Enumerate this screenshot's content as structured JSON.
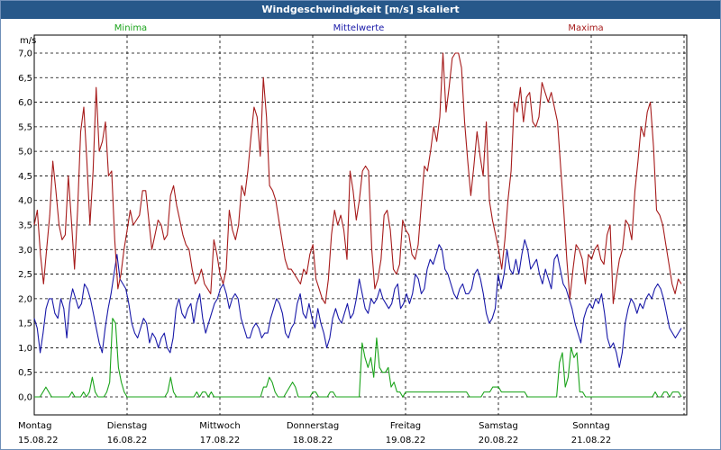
{
  "window": {
    "title": "Windgeschwindigkeit [m/s] skaliert"
  },
  "chart_data": {
    "type": "line",
    "title": "Windgeschwindigkeit [m/s] skaliert",
    "ylabel": "m/s",
    "ylim": [
      0,
      7.0
    ],
    "yticks": [
      "0,0",
      "0,5",
      "1,0",
      "1,5",
      "2,0",
      "2,5",
      "3,0",
      "3,5",
      "4,0",
      "4,5",
      "5,0",
      "5,5",
      "6,0",
      "6,5",
      "7,0"
    ],
    "day_labels": [
      {
        "weekday": "Montag",
        "date": "15.08.22"
      },
      {
        "weekday": "Dienstag",
        "date": "16.08.22"
      },
      {
        "weekday": "Mittwoch",
        "date": "17.08.22"
      },
      {
        "weekday": "Donnerstag",
        "date": "18.08.22"
      },
      {
        "weekday": "Freitag",
        "date": "19.08.22"
      },
      {
        "weekday": "Samstag",
        "date": "20.08.22"
      },
      {
        "weekday": "Sonntag",
        "date": "21.08.22"
      }
    ],
    "grid": true,
    "series": [
      {
        "name": "Minima",
        "color": "#1aa31a",
        "values": [
          0,
          0,
          0,
          0.1,
          0.2,
          0.1,
          0,
          0,
          0,
          0,
          0,
          0,
          0,
          0.1,
          0,
          0,
          0,
          0.1,
          0,
          0.1,
          0.4,
          0.1,
          0,
          0,
          0,
          0.1,
          0.3,
          1.6,
          1.5,
          0.6,
          0.3,
          0.1,
          0,
          0,
          0,
          0,
          0,
          0,
          0,
          0,
          0,
          0,
          0,
          0,
          0,
          0,
          0.1,
          0.4,
          0.1,
          0,
          0,
          0,
          0,
          0,
          0,
          0,
          0.1,
          0,
          0.1,
          0.1,
          0,
          0.1,
          0,
          0,
          0,
          0,
          0,
          0,
          0,
          0,
          0,
          0,
          0,
          0,
          0,
          0,
          0,
          0,
          0,
          0.2,
          0.2,
          0.4,
          0.3,
          0.1,
          0,
          0,
          0,
          0.1,
          0.2,
          0.3,
          0.2,
          0,
          0,
          0,
          0,
          0,
          0.1,
          0.1,
          0,
          0,
          0,
          0,
          0.1,
          0.1,
          0,
          0,
          0,
          0,
          0,
          0,
          0,
          0,
          0,
          1.1,
          0.8,
          0.6,
          0.8,
          0.4,
          1.2,
          0.6,
          0.5,
          0.5,
          0.6,
          0.2,
          0.3,
          0.1,
          0.1,
          0,
          0.1,
          0.1,
          0.1,
          0.1,
          0.1,
          0.1,
          0.1,
          0.1,
          0.1,
          0.1,
          0.1,
          0.1,
          0.1,
          0.1,
          0.1,
          0.1,
          0.1,
          0.1,
          0.1,
          0.1,
          0.1,
          0.1,
          0,
          0,
          0,
          0,
          0,
          0.1,
          0.1,
          0.1,
          0.2,
          0.2,
          0.2,
          0.1,
          0.1,
          0.1,
          0.1,
          0.1,
          0.1,
          0.1,
          0.1,
          0.1,
          0,
          0,
          0,
          0,
          0,
          0,
          0,
          0,
          0,
          0,
          0,
          0.7,
          0.9,
          0.2,
          0.4,
          1.0,
          0.8,
          0.9,
          0.1,
          0.1,
          0,
          0,
          0,
          0,
          0,
          0,
          0,
          0,
          0,
          0,
          0,
          0,
          0,
          0,
          0,
          0,
          0,
          0,
          0,
          0,
          0,
          0,
          0,
          0,
          0.1,
          0,
          0,
          0.1,
          0.1,
          0,
          0.1,
          0.1,
          0.1,
          0
        ]
      },
      {
        "name": "Mittelwerte",
        "color": "#1818a8",
        "values": [
          1.6,
          1.4,
          0.9,
          1.3,
          1.8,
          2.0,
          2.0,
          1.7,
          1.6,
          2.0,
          1.8,
          1.2,
          1.9,
          2.2,
          2.0,
          1.8,
          1.9,
          2.3,
          2.2,
          2.0,
          1.7,
          1.4,
          1.1,
          0.9,
          1.4,
          1.8,
          2.1,
          2.5,
          2.9,
          2.4,
          2.3,
          2.2,
          1.9,
          1.5,
          1.3,
          1.2,
          1.4,
          1.6,
          1.5,
          1.1,
          1.3,
          1.2,
          1.0,
          1.2,
          1.3,
          1.0,
          0.9,
          1.2,
          1.8,
          2.0,
          1.7,
          1.6,
          1.8,
          1.9,
          1.5,
          1.9,
          2.1,
          1.6,
          1.3,
          1.5,
          1.7,
          1.9,
          2.0,
          2.2,
          2.3,
          2.1,
          1.8,
          2.0,
          2.1,
          2.0,
          1.6,
          1.4,
          1.2,
          1.2,
          1.4,
          1.5,
          1.4,
          1.2,
          1.3,
          1.3,
          1.6,
          1.8,
          2.0,
          1.9,
          1.7,
          1.3,
          1.2,
          1.4,
          1.5,
          1.9,
          2.1,
          1.7,
          1.6,
          1.9,
          1.6,
          1.4,
          1.8,
          1.5,
          1.3,
          1.0,
          1.2,
          1.6,
          1.8,
          1.6,
          1.5,
          1.7,
          1.9,
          1.6,
          1.7,
          2.0,
          2.4,
          2.1,
          1.8,
          1.7,
          2.0,
          1.9,
          2.0,
          2.2,
          2.0,
          1.9,
          1.8,
          1.9,
          2.2,
          2.3,
          1.8,
          1.9,
          2.1,
          1.9,
          2.1,
          2.5,
          2.4,
          2.1,
          2.2,
          2.6,
          2.8,
          2.7,
          2.9,
          3.1,
          3.0,
          2.6,
          2.5,
          2.3,
          2.1,
          2.0,
          2.2,
          2.3,
          2.1,
          2.1,
          2.2,
          2.5,
          2.6,
          2.4,
          2.1,
          1.7,
          1.5,
          1.6,
          1.8,
          2.5,
          2.2,
          2.5,
          3.0,
          2.6,
          2.5,
          2.8,
          2.5,
          2.9,
          3.2,
          3.0,
          2.6,
          2.7,
          2.8,
          2.5,
          2.3,
          2.6,
          2.4,
          2.2,
          2.8,
          2.9,
          2.6,
          2.3,
          2.2,
          2.0,
          1.8,
          1.5,
          1.3,
          1.1,
          1.6,
          1.8,
          1.9,
          1.8,
          2.0,
          1.9,
          2.1,
          1.7,
          1.2,
          1.0,
          1.1,
          0.9,
          0.6,
          0.9,
          1.5,
          1.8,
          2.0,
          1.9,
          1.7,
          1.9,
          1.8,
          2.0,
          2.1,
          2.0,
          2.2,
          2.3,
          2.2,
          2.0,
          1.7,
          1.4,
          1.3,
          1.2,
          1.3,
          1.4
        ]
      },
      {
        "name": "Maxima",
        "color": "#a61b1b",
        "values": [
          3.5,
          3.8,
          2.9,
          2.3,
          3.0,
          3.7,
          4.8,
          4.2,
          3.5,
          3.2,
          3.3,
          4.5,
          3.6,
          2.6,
          3.8,
          5.4,
          5.9,
          4.8,
          3.5,
          4.6,
          6.3,
          5.0,
          5.2,
          5.6,
          4.5,
          4.6,
          3.2,
          2.2,
          2.5,
          3.0,
          3.4,
          3.8,
          3.5,
          3.6,
          3.7,
          4.2,
          4.2,
          3.6,
          3.0,
          3.3,
          3.6,
          3.5,
          3.2,
          3.3,
          4.1,
          4.3,
          3.9,
          3.6,
          3.3,
          3.1,
          3.0,
          2.6,
          2.3,
          2.4,
          2.6,
          2.3,
          2.2,
          2.1,
          3.2,
          2.9,
          2.5,
          2.3,
          2.6,
          3.8,
          3.4,
          3.2,
          3.5,
          4.3,
          4.1,
          4.6,
          5.3,
          5.9,
          5.7,
          4.9,
          6.5,
          5.7,
          4.3,
          4.2,
          4.0,
          3.6,
          3.2,
          2.8,
          2.6,
          2.6,
          2.5,
          2.4,
          2.3,
          2.6,
          2.5,
          2.9,
          3.1,
          2.4,
          2.2,
          2.0,
          1.9,
          2.4,
          3.3,
          3.8,
          3.5,
          3.7,
          3.4,
          2.8,
          4.6,
          4.2,
          3.6,
          4.0,
          4.6,
          4.7,
          4.6,
          3.0,
          2.2,
          2.4,
          2.8,
          3.7,
          3.8,
          3.4,
          2.6,
          2.5,
          2.7,
          3.6,
          3.4,
          3.3,
          2.9,
          2.8,
          3.1,
          3.9,
          4.7,
          4.6,
          5.0,
          5.5,
          5.2,
          5.7,
          7.0,
          5.8,
          6.3,
          6.9,
          7.0,
          7.0,
          6.7,
          5.6,
          4.8,
          4.1,
          4.7,
          5.4,
          4.9,
          4.5,
          5.6,
          4.0,
          3.6,
          3.3,
          3.0,
          2.6,
          3.2,
          4.0,
          4.6,
          6.0,
          5.8,
          6.3,
          5.6,
          6.1,
          6.2,
          5.6,
          5.5,
          5.7,
          6.4,
          6.2,
          6.0,
          6.2,
          5.9,
          5.6,
          4.7,
          3.8,
          2.8,
          2.0,
          2.6,
          3.1,
          3.0,
          2.8,
          2.3,
          2.9,
          2.8,
          3.0,
          3.1,
          2.8,
          2.7,
          3.3,
          3.5,
          1.9,
          2.4,
          2.8,
          3.0,
          3.6,
          3.5,
          3.2,
          4.2,
          4.8,
          5.5,
          5.3,
          5.8,
          6.0,
          5.1,
          3.8,
          3.7,
          3.5,
          3.1,
          2.7,
          2.3,
          2.1,
          2.4,
          2.3
        ]
      }
    ]
  }
}
